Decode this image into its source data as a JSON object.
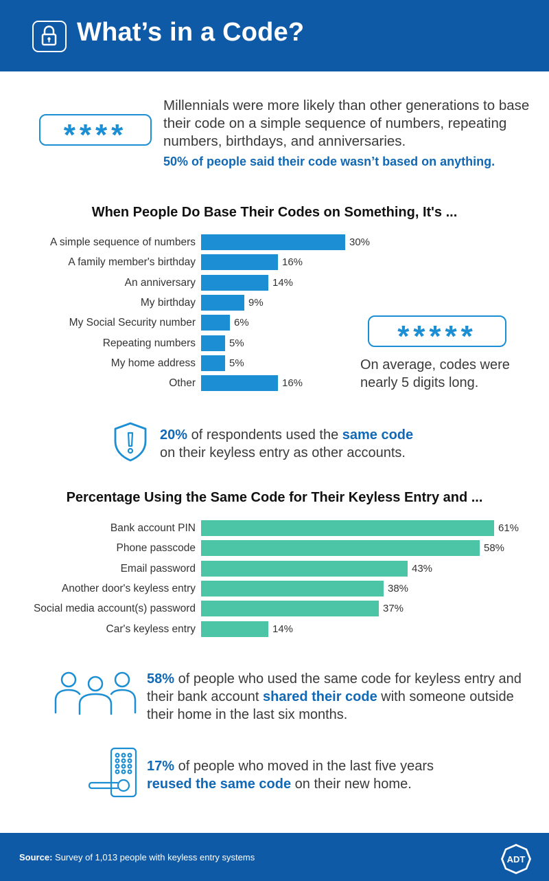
{
  "header": {
    "title": "What’s in a Code?",
    "icon": "lock-icon"
  },
  "intro": {
    "pin_masked": "****",
    "text": "Millennials were more likely than other generations to base their code on a simple sequence of numbers, repeating numbers, birthdays, and anniversaries.",
    "highlight": "50% of people said their code wasn’t based on anything."
  },
  "average": {
    "pin_masked": "*****",
    "text": "On average, codes were nearly 5 digits long."
  },
  "stat_same_code": {
    "icon": "shield-alert-icon",
    "pct": "20%",
    "text_a": " of respondents used the ",
    "bold": "same code",
    "text_b": " on their keyless entry as other accounts."
  },
  "stat_shared": {
    "icon": "people-icon",
    "pct": "58%",
    "text_a": " of people who used the same code for keyless entry and their bank account ",
    "bold": "shared their code",
    "text_b": " with someone outside their home in the last six months."
  },
  "stat_moved": {
    "icon": "keypad-lock-icon",
    "pct": "17%",
    "text_a": " of people who moved in the last five years ",
    "bold": "reused the same code",
    "text_b": " on their new home."
  },
  "footer": {
    "source_label": "Source:",
    "source_text": " Survey of 1,013 people with keyless entry systems",
    "logo_text": "ADT"
  },
  "colors": {
    "brand_blue": "#0f5aa6",
    "accent_blue": "#1c8ed3",
    "teal": "#4cc5a6"
  },
  "chart_data": [
    {
      "type": "bar",
      "orientation": "horizontal",
      "title": "When People Do Base Their Codes on Something, It's ...",
      "categories": [
        "A simple sequence of numbers",
        "A family member's birthday",
        "An anniversary",
        "My birthday",
        "My Social Security number",
        "Repeating numbers",
        "My home address",
        "Other"
      ],
      "values": [
        30,
        16,
        14,
        9,
        6,
        5,
        5,
        16
      ],
      "value_labels": [
        "30%",
        "16%",
        "14%",
        "9%",
        "6%",
        "5%",
        "5%",
        "16%"
      ],
      "color": "#1c8ed3",
      "xlim": [
        0,
        65
      ]
    },
    {
      "type": "bar",
      "orientation": "horizontal",
      "title": "Percentage Using the Same Code for Their Keyless Entry and ...",
      "categories": [
        "Bank account PIN",
        "Phone passcode",
        "Email password",
        "Another door's keyless entry",
        "Social media account(s) password",
        "Car's keyless entry"
      ],
      "values": [
        61,
        58,
        43,
        38,
        37,
        14
      ],
      "value_labels": [
        "61%",
        "58%",
        "43%",
        "38%",
        "37%",
        "14%"
      ],
      "color": "#4cc5a6",
      "xlim": [
        0,
        65
      ]
    }
  ]
}
